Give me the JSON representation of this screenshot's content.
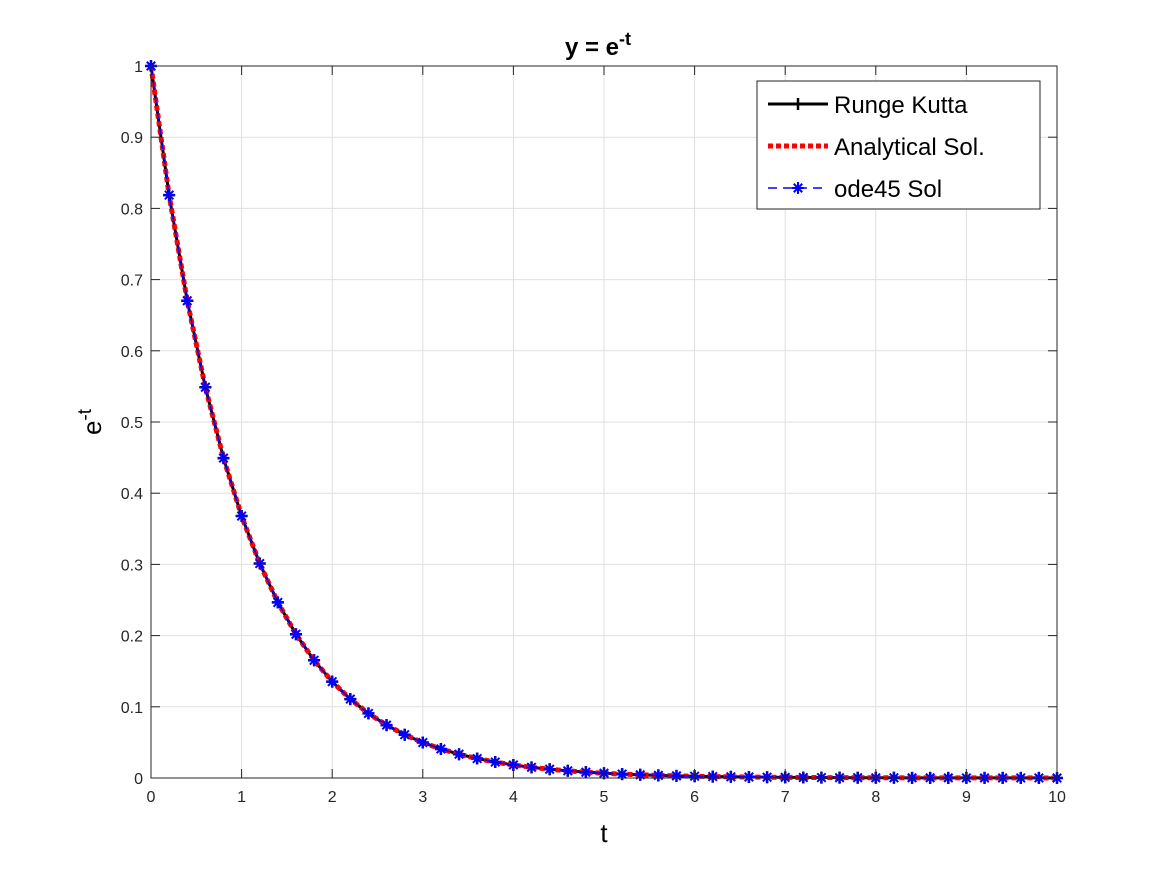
{
  "chart_data": {
    "type": "line",
    "title": "y = e",
    "title_sup": "-t",
    "xlabel": "t",
    "ylabel": "e",
    "ylabel_sup": "-t",
    "xlim": [
      0,
      10
    ],
    "ylim": [
      0,
      1
    ],
    "xticks": [
      0,
      1,
      2,
      3,
      4,
      5,
      6,
      7,
      8,
      9,
      10
    ],
    "xtick_labels": [
      "0",
      "1",
      "2",
      "3",
      "4",
      "5",
      "6",
      "7",
      "8",
      "9",
      "10"
    ],
    "yticks": [
      0,
      0.1,
      0.2,
      0.3,
      0.4,
      0.5,
      0.6,
      0.7,
      0.8,
      0.9,
      1
    ],
    "ytick_labels": [
      "0",
      "0.1",
      "0.2",
      "0.3",
      "0.4",
      "0.5",
      "0.6",
      "0.7",
      "0.8",
      "0.9",
      "1"
    ],
    "grid": true,
    "legend_position": "top-right",
    "x": [
      0,
      0.2,
      0.4,
      0.6,
      0.8,
      1.0,
      1.2,
      1.4,
      1.6,
      1.8,
      2.0,
      2.2,
      2.4,
      2.6,
      2.8,
      3.0,
      3.2,
      3.4,
      3.6,
      3.8,
      4.0,
      4.2,
      4.4,
      4.6,
      4.8,
      5.0,
      5.2,
      5.4,
      5.6,
      5.8,
      6.0,
      6.2,
      6.4,
      6.6,
      6.8,
      7.0,
      7.2,
      7.4,
      7.6,
      7.8,
      8.0,
      8.2,
      8.4,
      8.6,
      8.8,
      9.0,
      9.2,
      9.4,
      9.6,
      9.8,
      10.0
    ],
    "series": [
      {
        "name": "Runge Kutta",
        "color": "#000000",
        "style": "solid",
        "marker": "plus",
        "values": [
          1.0,
          0.8187,
          0.6703,
          0.5488,
          0.4493,
          0.3679,
          0.3012,
          0.2466,
          0.2019,
          0.1653,
          0.1353,
          0.1108,
          0.0907,
          0.0743,
          0.0608,
          0.0498,
          0.0408,
          0.0334,
          0.0273,
          0.0224,
          0.0183,
          0.015,
          0.0123,
          0.0101,
          0.0082,
          0.0067,
          0.0055,
          0.0045,
          0.0037,
          0.003,
          0.0025,
          0.002,
          0.0017,
          0.0014,
          0.0011,
          0.0009,
          0.0007,
          0.0006,
          0.0005,
          0.0004,
          0.0003,
          0.0003,
          0.0002,
          0.0002,
          0.0002,
          0.0001,
          0.0001,
          0.0001,
          0.0001,
          0.0001,
          0.0
        ]
      },
      {
        "name": "Analytical Sol.",
        "color": "#ff0000",
        "style": "dotted",
        "marker": "none",
        "values": [
          1.0,
          0.8187,
          0.6703,
          0.5488,
          0.4493,
          0.3679,
          0.3012,
          0.2466,
          0.2019,
          0.1653,
          0.1353,
          0.1108,
          0.0907,
          0.0743,
          0.0608,
          0.0498,
          0.0408,
          0.0334,
          0.0273,
          0.0224,
          0.0183,
          0.015,
          0.0123,
          0.0101,
          0.0082,
          0.0067,
          0.0055,
          0.0045,
          0.0037,
          0.003,
          0.0025,
          0.002,
          0.0017,
          0.0014,
          0.0011,
          0.0009,
          0.0007,
          0.0006,
          0.0005,
          0.0004,
          0.0003,
          0.0003,
          0.0002,
          0.0002,
          0.0002,
          0.0001,
          0.0001,
          0.0001,
          0.0001,
          0.0001,
          0.0
        ]
      },
      {
        "name": "ode45 Sol",
        "color": "#0000ff",
        "style": "dashed",
        "marker": "asterisk",
        "values": [
          1.0,
          0.8187,
          0.6703,
          0.5488,
          0.4493,
          0.3679,
          0.3012,
          0.2466,
          0.2019,
          0.1653,
          0.1353,
          0.1108,
          0.0907,
          0.0743,
          0.0608,
          0.0498,
          0.0408,
          0.0334,
          0.0273,
          0.0224,
          0.0183,
          0.015,
          0.0123,
          0.0101,
          0.0082,
          0.0067,
          0.0055,
          0.0045,
          0.0037,
          0.003,
          0.0025,
          0.002,
          0.0017,
          0.0014,
          0.0011,
          0.0009,
          0.0007,
          0.0006,
          0.0005,
          0.0004,
          0.0003,
          0.0003,
          0.0002,
          0.0002,
          0.0002,
          0.0001,
          0.0001,
          0.0001,
          0.0001,
          0.0001,
          0.0
        ]
      }
    ]
  }
}
